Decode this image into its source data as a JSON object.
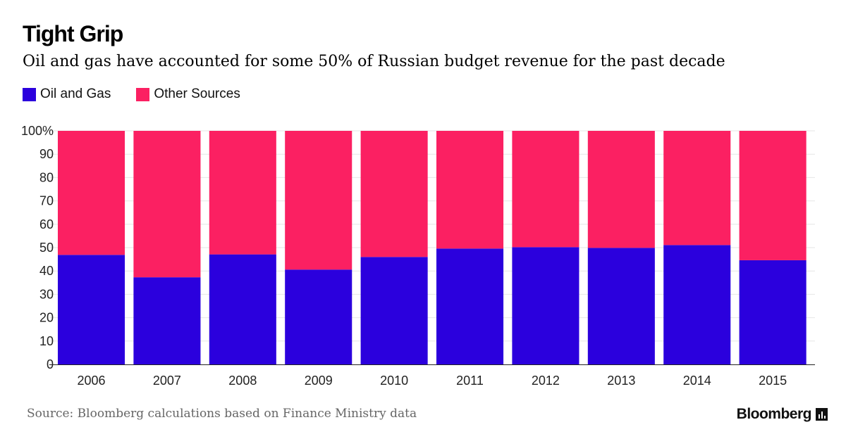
{
  "chart_data": {
    "type": "bar",
    "stacked": true,
    "title": "Tight Grip",
    "subtitle": "Oil and gas have accounted for some 50% of Russian budget revenue for the past decade",
    "categories": [
      "2006",
      "2007",
      "2008",
      "2009",
      "2010",
      "2011",
      "2012",
      "2013",
      "2014",
      "2015"
    ],
    "series": [
      {
        "name": "Oil and Gas",
        "color": "#2b00dd",
        "values": [
          46.9,
          37.3,
          47.1,
          40.6,
          46.0,
          49.6,
          50.2,
          49.9,
          51.1,
          44.6
        ]
      },
      {
        "name": "Other Sources",
        "color": "#fb2062",
        "values": [
          53.1,
          62.7,
          52.9,
          59.4,
          54.0,
          50.4,
          49.8,
          50.1,
          48.9,
          55.4
        ]
      }
    ],
    "ylim": [
      0,
      100
    ],
    "yticks": [
      "0",
      "10",
      "20",
      "30",
      "40",
      "50",
      "60",
      "70",
      "80",
      "90",
      "100%"
    ],
    "grid": true,
    "legend_position": "top-left",
    "source": "Source: Bloomberg calculations based on Finance Ministry data"
  },
  "brand": {
    "name": "Bloomberg",
    "icon": "bar-chart-icon"
  }
}
